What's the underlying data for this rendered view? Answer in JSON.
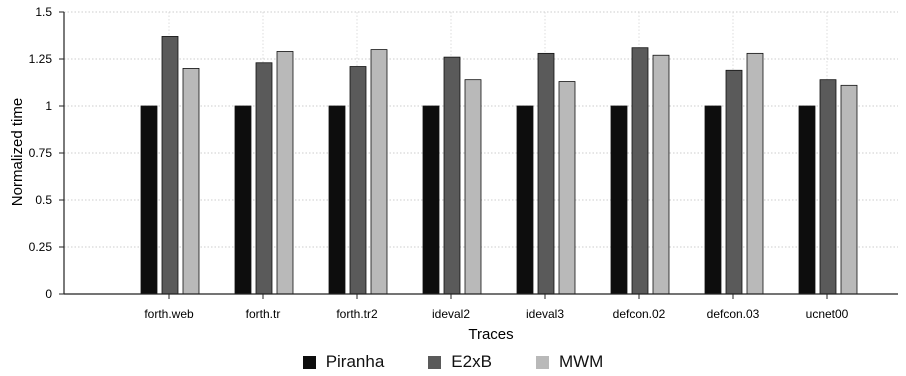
{
  "chart_data": {
    "type": "bar",
    "xlabel": "Traces",
    "ylabel": "Normalized time",
    "ylim": [
      0,
      1.5
    ],
    "yticks": [
      0,
      0.25,
      0.5,
      0.75,
      1,
      1.25,
      1.5
    ],
    "ytick_labels": [
      "0",
      "0.25",
      "0.5",
      "0.75",
      "1",
      "1.25",
      "1.5"
    ],
    "grid": true,
    "legend_position": "bottom",
    "categories": [
      "forth.web",
      "forth.tr",
      "forth.tr2",
      "ideval2",
      "ideval3",
      "defcon.02",
      "defcon.03",
      "ucnet00"
    ],
    "series": [
      {
        "name": "Piranha",
        "color": "#0d0d0d",
        "values": [
          1,
          1,
          1,
          1,
          1,
          1,
          1,
          1
        ]
      },
      {
        "name": "E2xB",
        "color": "#5a5a5a",
        "values": [
          1.37,
          1.23,
          1.21,
          1.26,
          1.28,
          1.31,
          1.19,
          1.14
        ]
      },
      {
        "name": "MWM",
        "color": "#b9b9b9",
        "values": [
          1.2,
          1.29,
          1.3,
          1.14,
          1.13,
          1.27,
          1.28,
          1.11
        ]
      }
    ]
  }
}
